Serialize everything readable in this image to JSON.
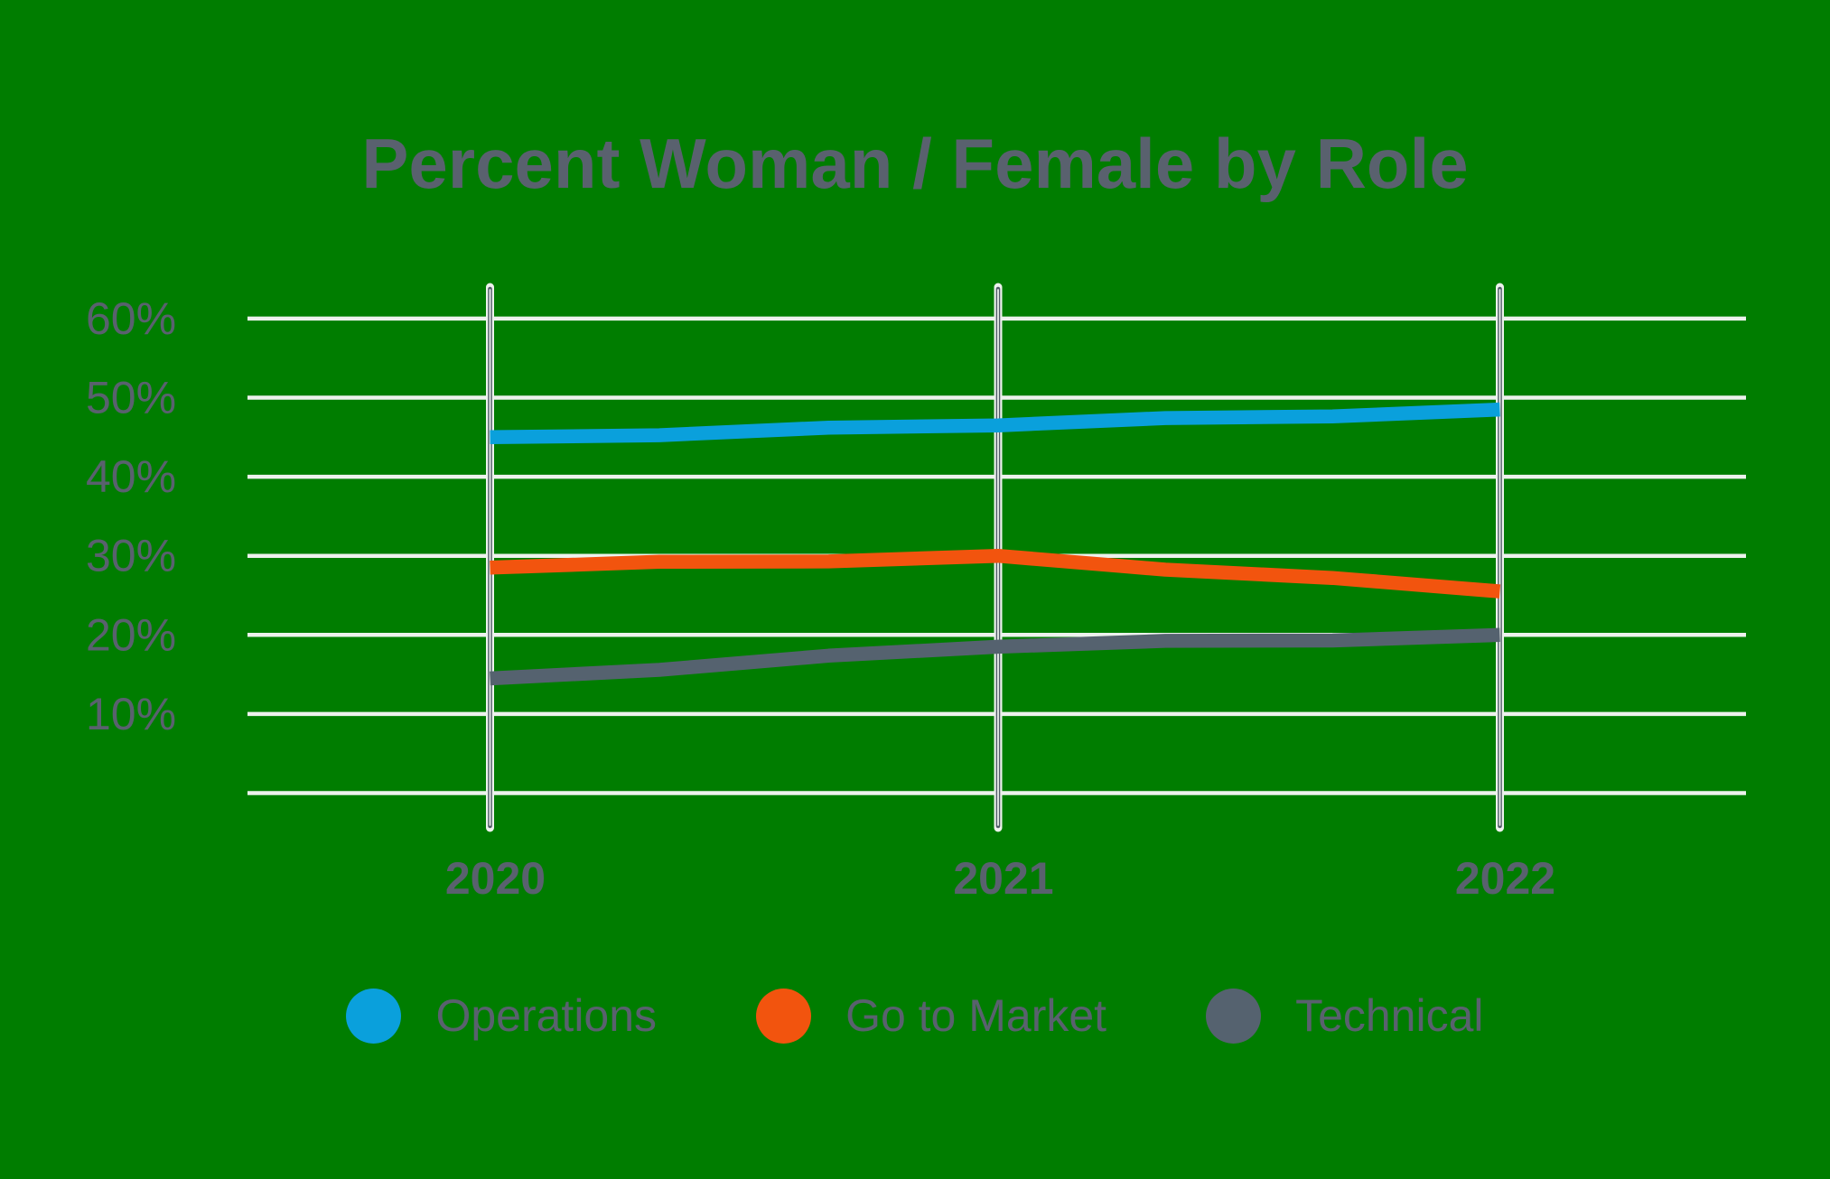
{
  "chart_data": {
    "type": "line",
    "title": "Percent Woman / Female by Role",
    "categories": [
      "2020",
      "2021",
      "2022"
    ],
    "series": [
      {
        "name": "Operations",
        "color": "#0AA0DC",
        "values": [
          45.0,
          46.5,
          48.5
        ]
      },
      {
        "name": "Go to Market",
        "color": "#F2540E",
        "values": [
          28.5,
          30.0,
          25.5
        ]
      },
      {
        "name": "Technical",
        "color": "#55626F",
        "values": [
          14.5,
          18.5,
          20.0
        ]
      }
    ],
    "unit": "%",
    "xlabel": "",
    "ylabel": "",
    "y_ticks": [
      {
        "label": "60%",
        "value": 60
      },
      {
        "label": "50%",
        "value": 50
      },
      {
        "label": "40%",
        "value": 40
      },
      {
        "label": "30%",
        "value": 30
      },
      {
        "label": "20%",
        "value": 20
      },
      {
        "label": "10%",
        "value": 10
      },
      {
        "label": "",
        "value": 0
      }
    ],
    "ylim": [
      0,
      60
    ],
    "grid": "horizontal white gridlines; white-cased vertical marker line at each year",
    "legend_position": "bottom"
  },
  "colors": {
    "background": "#007D00",
    "gridline": "#EDF2ED",
    "vline_core": "#4E5A66",
    "text": "#59616E"
  }
}
